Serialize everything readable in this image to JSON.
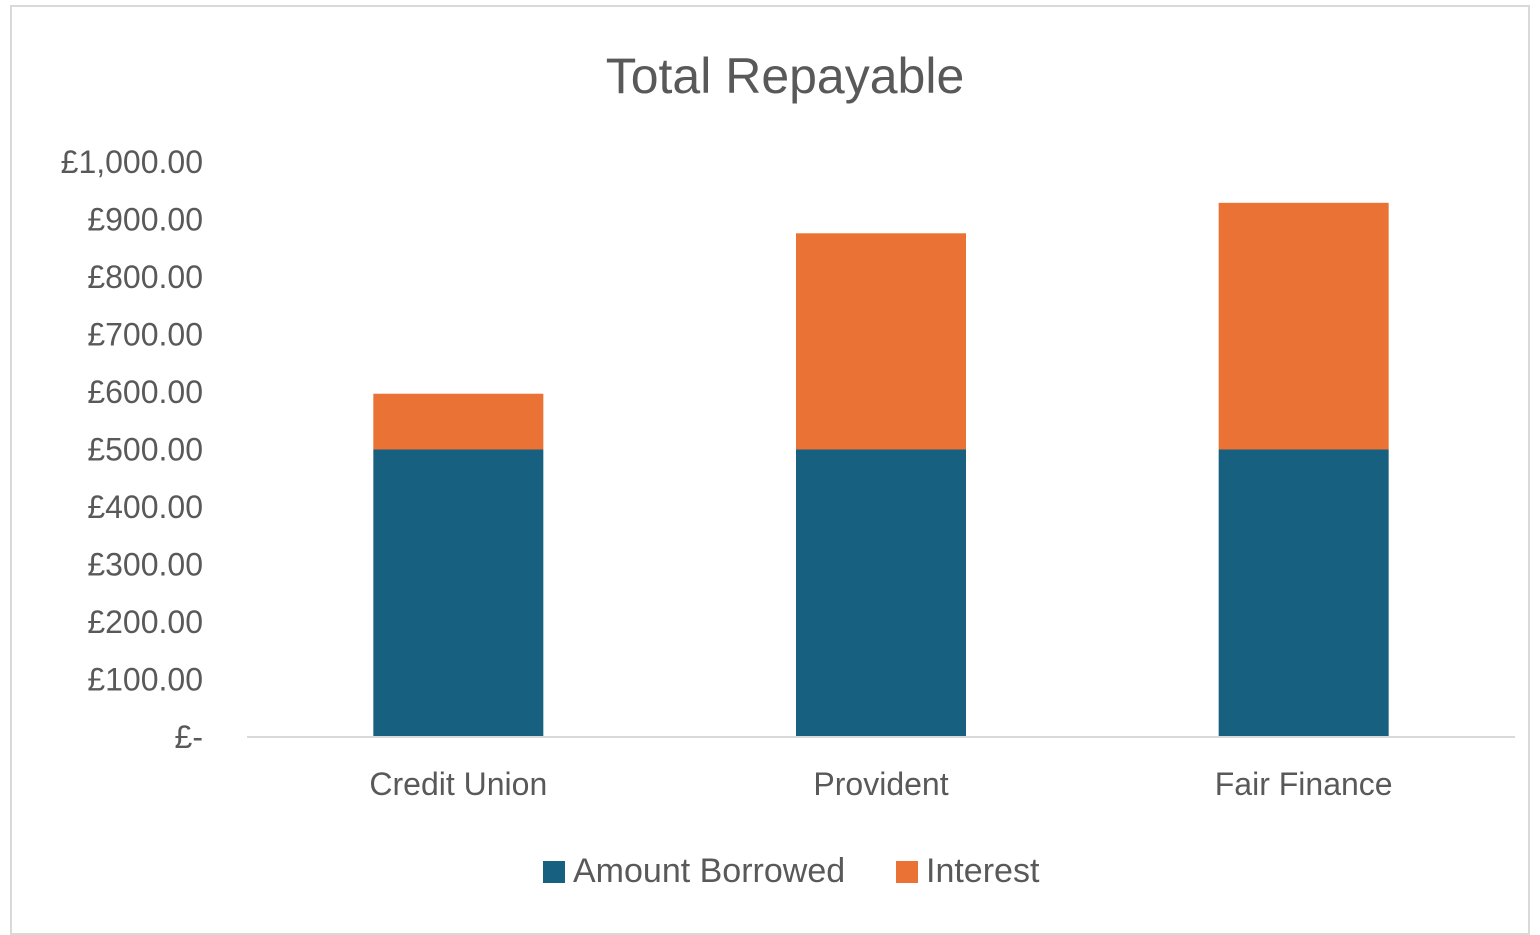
{
  "chart_data": {
    "type": "bar",
    "stacked": true,
    "title": "Total Repayable",
    "xlabel": "",
    "ylabel": "",
    "categories": [
      "Credit Union",
      "Provident",
      "Fair Finance"
    ],
    "series": [
      {
        "name": "Amount Borrowed",
        "values": [
          500,
          500,
          500
        ],
        "color": "#17607f"
      },
      {
        "name": "Interest",
        "values": [
          97,
          376,
          429
        ],
        "color": "#e97234"
      }
    ],
    "ylim": [
      0,
      1000
    ],
    "yticks": [
      0,
      100,
      200,
      300,
      400,
      500,
      600,
      700,
      800,
      900,
      1000
    ],
    "ytick_labels": [
      "£-",
      "£100.00",
      "£200.00",
      "£300.00",
      "£400.00",
      "£500.00",
      "£600.00",
      "£700.00",
      "£800.00",
      "£900.00",
      "£1,000.00"
    ],
    "grid": false,
    "legend_position": "bottom"
  }
}
